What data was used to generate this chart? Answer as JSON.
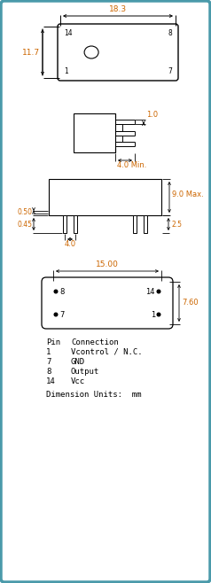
{
  "bg_color": "#ffffff",
  "border_color": "#4a9aaa",
  "drawing_color": "#000000",
  "dim_color": "#cc6600",
  "text_color": "#000000",
  "pin_table_header": [
    "Pin",
    "Connection"
  ],
  "pin_table_rows": [
    [
      "1",
      "Vcontrol / N.C."
    ],
    [
      "7",
      "GND"
    ],
    [
      "8",
      "Output"
    ],
    [
      "14",
      "Vcc"
    ]
  ],
  "dim_units": "Dimension Units:  mm",
  "view1_label_18p3": "18.3",
  "view1_label_11p7": "11.7",
  "view2_label_1p0": "1.0",
  "view2_label_4p0min": "4.0 Min.",
  "view3_label_9p0max": "9.0 Max.",
  "view3_label_0p50": "0.50",
  "view3_label_0p45": "0.45",
  "view3_label_4p0": "4.0",
  "view3_label_2p5": "2.5",
  "view4_label_15p00": "15.00",
  "view4_label_7p60": "7.60"
}
